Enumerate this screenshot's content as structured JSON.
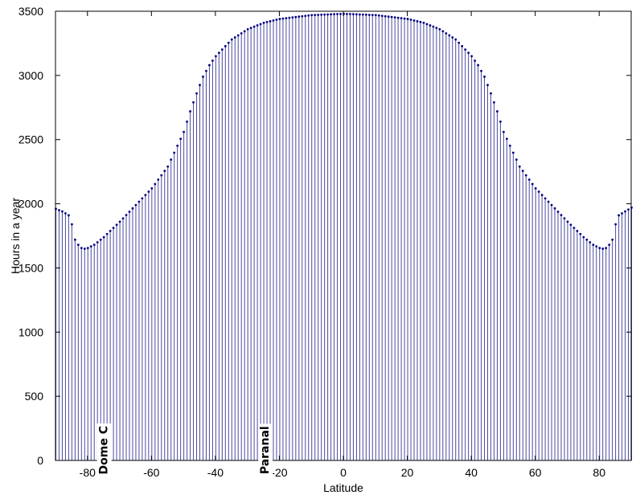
{
  "chart_data": {
    "type": "stem",
    "title": "",
    "xlabel": "Latitude",
    "ylabel": "Hours in a year",
    "xlim": [
      -90,
      90
    ],
    "ylim": [
      0,
      3500
    ],
    "xticks": [
      -80,
      -60,
      -40,
      -20,
      0,
      20,
      40,
      60,
      80
    ],
    "yticks": [
      0,
      500,
      1000,
      1500,
      2000,
      2500,
      3000,
      3500
    ],
    "x_step": 1,
    "stem_color": "#4a4aa0",
    "marker_color": "#000080",
    "grid": false,
    "legend": "none",
    "curve_points": [
      [
        -90,
        1960
      ],
      [
        -88,
        1940
      ],
      [
        -86,
        1910
      ],
      [
        -85,
        1840
      ],
      [
        -84,
        1720
      ],
      [
        -83,
        1680
      ],
      [
        -82,
        1655
      ],
      [
        -81,
        1650
      ],
      [
        -80,
        1655
      ],
      [
        -78,
        1680
      ],
      [
        -75,
        1740
      ],
      [
        -70,
        1860
      ],
      [
        -65,
        1990
      ],
      [
        -60,
        2120
      ],
      [
        -55,
        2290
      ],
      [
        -50,
        2560
      ],
      [
        -48,
        2720
      ],
      [
        -46,
        2860
      ],
      [
        -44,
        2990
      ],
      [
        -42,
        3080
      ],
      [
        -40,
        3150
      ],
      [
        -35,
        3280
      ],
      [
        -30,
        3360
      ],
      [
        -25,
        3410
      ],
      [
        -20,
        3440
      ],
      [
        -10,
        3470
      ],
      [
        0,
        3480
      ],
      [
        10,
        3470
      ],
      [
        20,
        3440
      ],
      [
        25,
        3410
      ],
      [
        30,
        3360
      ],
      [
        35,
        3280
      ],
      [
        40,
        3150
      ],
      [
        42,
        3080
      ],
      [
        44,
        2990
      ],
      [
        46,
        2860
      ],
      [
        48,
        2720
      ],
      [
        50,
        2560
      ],
      [
        55,
        2290
      ],
      [
        60,
        2120
      ],
      [
        65,
        1990
      ],
      [
        70,
        1860
      ],
      [
        75,
        1740
      ],
      [
        78,
        1680
      ],
      [
        80,
        1655
      ],
      [
        81,
        1650
      ],
      [
        82,
        1655
      ],
      [
        83,
        1680
      ],
      [
        84,
        1720
      ],
      [
        85,
        1840
      ],
      [
        86,
        1910
      ],
      [
        88,
        1940
      ],
      [
        90,
        1970
      ]
    ],
    "annotations": [
      {
        "text": "Dome C",
        "x": -75,
        "y": 80
      },
      {
        "text": "Paranal",
        "x": -24.6,
        "y": 80
      }
    ]
  }
}
